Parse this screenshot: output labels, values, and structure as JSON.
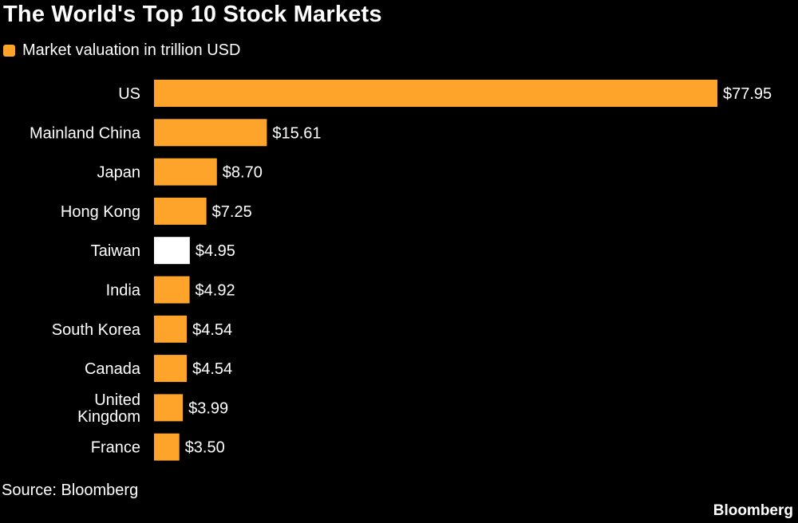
{
  "chart_data": {
    "type": "bar",
    "orientation": "horizontal",
    "title": "The World's Top 10 Stock Markets",
    "legend": {
      "placement": "top-left",
      "entries": [
        {
          "name": "Market valuation in trillion USD",
          "color": "#FFA42B"
        }
      ]
    },
    "categories": [
      [
        "US"
      ],
      [
        "Mainland China"
      ],
      [
        "Japan"
      ],
      [
        "Hong Kong"
      ],
      [
        "Taiwan"
      ],
      [
        "India"
      ],
      [
        "South Korea"
      ],
      [
        "Canada"
      ],
      [
        "United",
        "Kingdom"
      ],
      [
        "France"
      ]
    ],
    "values": [
      77.95,
      15.61,
      8.7,
      7.25,
      4.95,
      4.92,
      4.54,
      4.54,
      3.99,
      3.5
    ],
    "value_labels": [
      "$77.95",
      "$15.61",
      "$8.70",
      "$7.25",
      "$4.95",
      "$4.92",
      "$4.54",
      "$4.54",
      "$3.99",
      "$3.50"
    ],
    "highlight_category": "Taiwan",
    "xlim": [
      0,
      77.95
    ],
    "grid": false,
    "xlabel": "",
    "ylabel": ""
  },
  "colors": {
    "bar": "#FFA42B",
    "highlight": "#FFFFFF",
    "background": "#000000",
    "text": "#FFFFFF"
  },
  "source": "Source: Bloomberg",
  "brand": "Bloomberg"
}
